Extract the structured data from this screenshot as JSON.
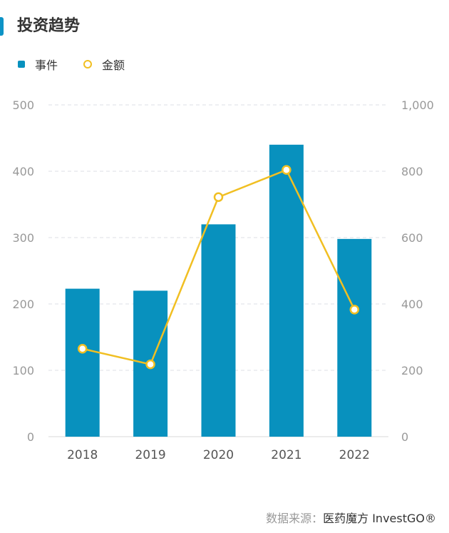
{
  "title": "投资趋势",
  "colors": {
    "bar": "#0891be",
    "line": "#f1bf22",
    "accent": "#0d93c6"
  },
  "chart_data": {
    "type": "bar",
    "categories": [
      "2018",
      "2019",
      "2020",
      "2021",
      "2022"
    ],
    "series": [
      {
        "name": "事件",
        "type": "bar",
        "axis": "left",
        "values": [
          223,
          220,
          320,
          440,
          298
        ]
      },
      {
        "name": "金额",
        "type": "line",
        "axis": "right",
        "values": [
          265,
          218,
          722,
          804,
          383
        ]
      }
    ],
    "y_left": {
      "range": [
        0,
        500
      ],
      "ticks": [
        "0",
        "100",
        "200",
        "300",
        "400",
        "500"
      ]
    },
    "y_right": {
      "range": [
        0,
        1000
      ],
      "ticks": [
        "0",
        "200",
        "400",
        "600",
        "800",
        "1,000"
      ]
    },
    "grid": "horizontal dashed",
    "legend_position": "top-left"
  },
  "footer": {
    "label": "数据来源：",
    "brand": "医药魔方 InvestGO®"
  }
}
